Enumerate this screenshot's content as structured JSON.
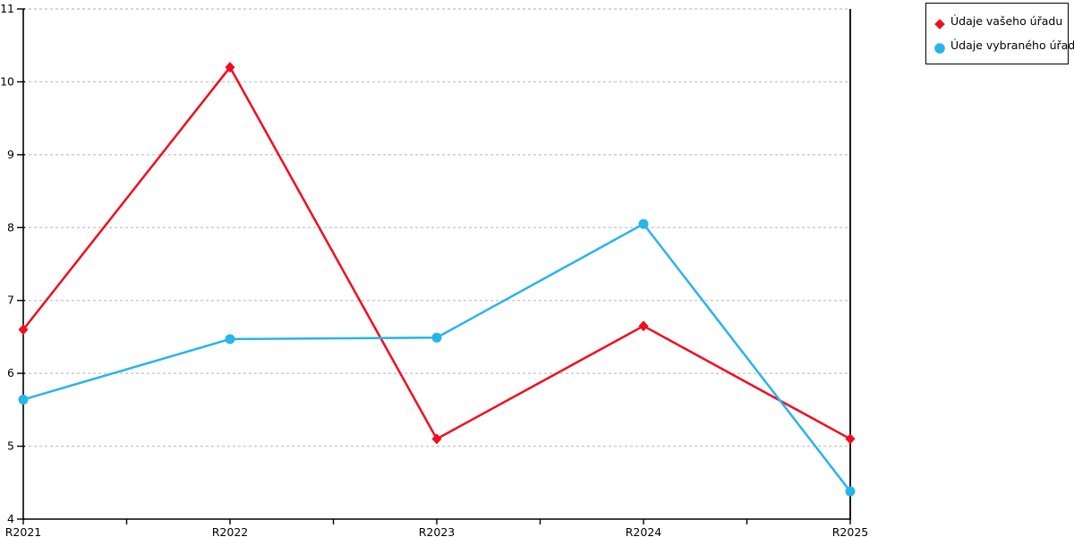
{
  "chart_data": {
    "type": "line",
    "categories": [
      "R2021",
      "R2022",
      "R2023",
      "R2024",
      "R2025"
    ],
    "series": [
      {
        "name": "Údaje vašeho úřadu",
        "color": "#f20c1e",
        "marker": "diamond",
        "values": [
          6.6,
          10.2,
          5.1,
          6.65,
          5.1
        ]
      },
      {
        "name": "Údaje vybraného úřadu",
        "color": "#29b4ea",
        "marker": "circle",
        "values": [
          5.64,
          6.47,
          6.49,
          8.05,
          4.38
        ]
      }
    ],
    "ylim": [
      4,
      11
    ],
    "y_tick_labels": [
      "4",
      "5",
      "6",
      "7",
      "8",
      "9",
      "10",
      "11"
    ],
    "grid": "horizontal-dashed",
    "gridline_color": "#c8c8c8",
    "axis_color": "#000000",
    "label_color": "#000000",
    "legend_position": "top-right"
  },
  "legend": {
    "items": [
      {
        "label": "Údaje vašeho úřadu",
        "color": "#f20c1e",
        "marker": "diamond"
      },
      {
        "label": "Údaje vybraného úřadu",
        "color": "#29b4ea",
        "marker": "circle"
      }
    ]
  }
}
